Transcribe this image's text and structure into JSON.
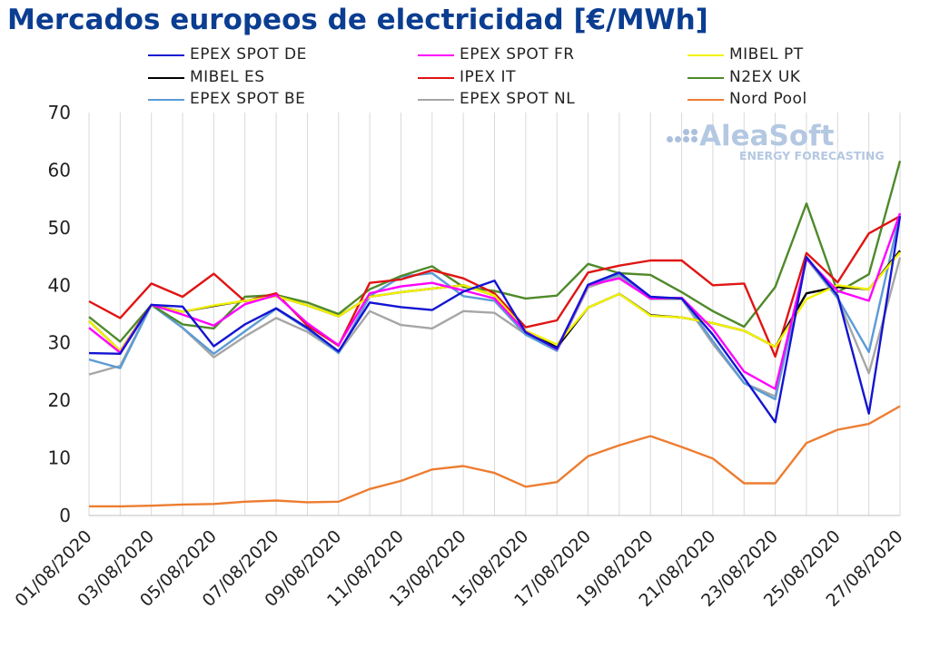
{
  "chart_data": {
    "type": "line",
    "title": "Mercados europeos de electricidad [€/MWh]",
    "xlabel": "",
    "ylabel": "",
    "ylim": [
      0,
      70
    ],
    "yticks": [
      0,
      10,
      20,
      30,
      40,
      50,
      60,
      70
    ],
    "grid": "vertical lines at each date",
    "legend_position": "top",
    "x": [
      "01/08/2020",
      "02/08/2020",
      "03/08/2020",
      "04/08/2020",
      "05/08/2020",
      "06/08/2020",
      "07/08/2020",
      "08/08/2020",
      "09/08/2020",
      "10/08/2020",
      "11/08/2020",
      "12/08/2020",
      "13/08/2020",
      "14/08/2020",
      "15/08/2020",
      "16/08/2020",
      "17/08/2020",
      "18/08/2020",
      "19/08/2020",
      "20/08/2020",
      "21/08/2020",
      "22/08/2020",
      "23/08/2020",
      "24/08/2020",
      "25/08/2020",
      "26/08/2020",
      "27/08/2020"
    ],
    "x_tick_labels": [
      "01/08/2020",
      "03/08/2020",
      "05/08/2020",
      "07/08/2020",
      "09/08/2020",
      "11/08/2020",
      "13/08/2020",
      "15/08/2020",
      "17/08/2020",
      "19/08/2020",
      "21/08/2020",
      "23/08/2020",
      "25/08/2020",
      "27/08/2020"
    ],
    "series": [
      {
        "name": "EPEX SPOT DE",
        "color": "#1414d2",
        "values": [
          28.2,
          28.1,
          36.6,
          36.3,
          29.4,
          33.2,
          36.0,
          32.6,
          28.5,
          37.0,
          36.2,
          35.7,
          38.9,
          40.8,
          31.8,
          29.0,
          40.1,
          42.2,
          38.0,
          37.7,
          31.4,
          23.9,
          16.2,
          44.9,
          38.2,
          17.7,
          52.0
        ]
      },
      {
        "name": "EPEX SPOT FR",
        "color": "#ff00ff",
        "values": [
          32.6,
          28.3,
          36.6,
          34.9,
          33.0,
          36.7,
          38.3,
          33.4,
          29.6,
          38.6,
          39.8,
          40.4,
          39.1,
          37.7,
          31.9,
          28.9,
          40.0,
          41.2,
          37.7,
          37.8,
          32.4,
          25.0,
          22.0,
          44.6,
          39.0,
          37.3,
          52.5
        ]
      },
      {
        "name": "MIBEL PT",
        "color": "#f2f200",
        "values": [
          33.8,
          28.6,
          36.5,
          35.4,
          36.5,
          37.3,
          38.1,
          36.5,
          34.6,
          38.0,
          38.8,
          39.4,
          40.0,
          38.2,
          32.1,
          29.7,
          36.1,
          38.5,
          34.7,
          34.4,
          33.4,
          32.1,
          29.3,
          37.6,
          40.0,
          39.3,
          45.7
        ]
      },
      {
        "name": "MIBEL ES",
        "color": "#000000",
        "values": [
          33.8,
          28.6,
          36.6,
          35.4,
          36.4,
          37.3,
          38.1,
          36.5,
          34.6,
          38.0,
          38.8,
          39.4,
          40.0,
          38.2,
          32.0,
          29.2,
          36.1,
          38.5,
          34.8,
          34.4,
          33.4,
          32.1,
          29.3,
          38.6,
          39.7,
          39.3,
          46.0
        ]
      },
      {
        "name": "IPEX IT",
        "color": "#e01414",
        "values": [
          37.2,
          34.3,
          40.3,
          38.0,
          42.0,
          37.2,
          38.6,
          33.0,
          29.5,
          40.4,
          41.0,
          42.6,
          41.2,
          38.6,
          32.7,
          33.9,
          42.2,
          43.4,
          44.3,
          44.3,
          40.0,
          40.3,
          27.6,
          45.6,
          40.5,
          49.0,
          52.0
        ]
      },
      {
        "name": "N2EX UK",
        "color": "#4f8a2a",
        "values": [
          34.5,
          30.2,
          36.6,
          33.2,
          32.5,
          38.0,
          38.3,
          37.0,
          35.0,
          39.3,
          41.6,
          43.3,
          39.7,
          39.0,
          37.7,
          38.2,
          43.7,
          42.1,
          41.8,
          38.8,
          35.5,
          32.8,
          39.7,
          54.2,
          38.8,
          41.9,
          61.6
        ]
      },
      {
        "name": "EPEX SPOT BE",
        "color": "#5b9bd5",
        "values": [
          27.1,
          25.6,
          36.6,
          32.6,
          28.1,
          32.0,
          35.9,
          32.4,
          28.2,
          38.1,
          41.5,
          42.1,
          38.1,
          37.3,
          31.4,
          28.6,
          40.0,
          41.9,
          37.8,
          37.8,
          30.3,
          23.0,
          20.2,
          44.8,
          37.8,
          28.4,
          52.5
        ]
      },
      {
        "name": "EPEX SPOT NL",
        "color": "#a6a6a6",
        "values": [
          24.5,
          26.0,
          36.6,
          32.6,
          27.5,
          31.1,
          34.3,
          31.9,
          28.3,
          35.5,
          33.1,
          32.5,
          35.5,
          35.2,
          31.5,
          28.6,
          39.6,
          41.5,
          37.6,
          37.6,
          29.8,
          23.0,
          20.7,
          44.6,
          37.7,
          24.7,
          44.8
        ]
      },
      {
        "name": "Nord Pool",
        "color": "#ed7d31",
        "values": [
          1.6,
          1.6,
          1.7,
          1.9,
          2.0,
          2.4,
          2.6,
          2.3,
          2.4,
          4.6,
          6.0,
          8.0,
          8.6,
          7.4,
          5.0,
          5.8,
          10.3,
          12.2,
          13.8,
          11.9,
          9.9,
          5.6,
          5.6,
          12.6,
          14.9,
          15.9,
          19.0
        ]
      }
    ]
  },
  "logo": {
    "name": "AleaSoft",
    "tagline": "ENERGY FORECASTING"
  }
}
